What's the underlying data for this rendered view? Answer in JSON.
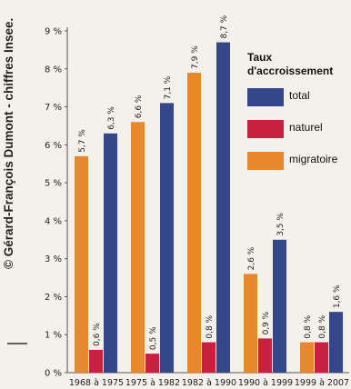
{
  "credit": "© Gérard-François Dumont - chiffres Insee.",
  "chart_data": {
    "type": "bar",
    "title": "",
    "xlabel": "",
    "ylabel": "",
    "ylim": [
      0,
      9
    ],
    "y_ticks": [
      "0 %",
      "1 %",
      "2 %",
      "3 %",
      "4 %",
      "5 %",
      "6 %",
      "7 %",
      "8 %",
      "9 %"
    ],
    "grid": false,
    "legend_title": "Taux\nd'accroissement",
    "legend_position": "top-right",
    "categories": [
      "1968 à 1975",
      "1975 à 1982",
      "1982 à 1990",
      "1990 à 1999",
      "1999 à 2007"
    ],
    "series": [
      {
        "name": "migratoire",
        "color": "#e8882e",
        "values": [
          5.7,
          6.6,
          7.9,
          2.6,
          0.8
        ],
        "labels": [
          "5,7 %",
          "6,6 %",
          "7,9 %",
          "2,6 %",
          "0,8 %"
        ]
      },
      {
        "name": "naturel",
        "color": "#c8203f",
        "values": [
          0.6,
          0.5,
          0.8,
          0.9,
          0.8
        ],
        "labels": [
          "0,6 %",
          "0,5 %",
          "0,8 %",
          "0,9 %",
          "0,8 %"
        ]
      },
      {
        "name": "total",
        "color": "#34478a",
        "values": [
          6.3,
          7.1,
          8.7,
          3.5,
          1.6
        ],
        "labels": [
          "6,3 %",
          "7,1 %",
          "8,7 %",
          "3,5 %",
          "1,6 %"
        ]
      }
    ],
    "legend_order": [
      "total",
      "naturel",
      "migratoire"
    ]
  }
}
